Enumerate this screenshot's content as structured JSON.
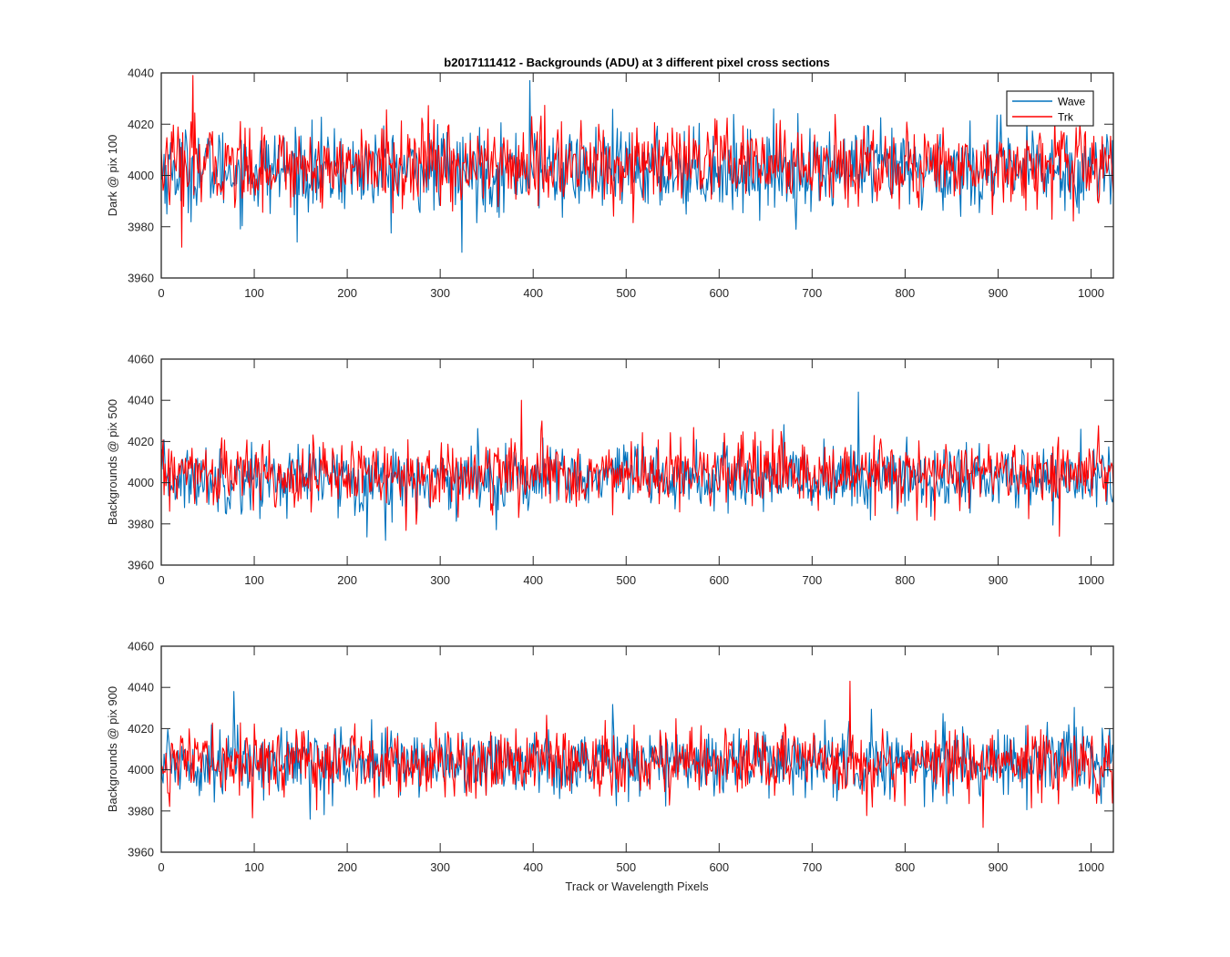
{
  "figure": {
    "title": "b2017111412 - Backgrounds (ADU) at 3 different pixel cross sections",
    "shared_xlabel": "Track or Wavelength Pixels"
  },
  "colors": {
    "wave": "#0072BD",
    "trk": "#FF0000",
    "axis": "#262626"
  },
  "chart_data": [
    {
      "type": "line",
      "title": "b2017111412 - Backgrounds (ADU) at 3 different pixel cross sections",
      "xlabel": "",
      "ylabel": "Dark @ pix 100",
      "xlim": [
        0,
        1024
      ],
      "ylim": [
        3960,
        4040
      ],
      "xticks": [
        0,
        100,
        200,
        300,
        400,
        500,
        600,
        700,
        800,
        900,
        1000
      ],
      "yticks": [
        3960,
        3980,
        4000,
        4020,
        4040
      ],
      "grid": false,
      "legend": "top-right",
      "series": [
        {
          "name": "Wave",
          "color": "#0072BD",
          "mean": 4002,
          "spread": 8,
          "range": [
            3970,
            4037
          ],
          "n_points": 1024
        },
        {
          "name": "Trk",
          "color": "#FF0000",
          "mean": 4004,
          "spread": 8,
          "range": [
            3972,
            4039
          ],
          "n_points": 1024
        }
      ]
    },
    {
      "type": "line",
      "title": "",
      "xlabel": "",
      "ylabel": "Backgrounds @ pix 500",
      "xlim": [
        0,
        1024
      ],
      "ylim": [
        3960,
        4060
      ],
      "xticks": [
        0,
        100,
        200,
        300,
        400,
        500,
        600,
        700,
        800,
        900,
        1000
      ],
      "yticks": [
        3960,
        3980,
        4000,
        4020,
        4040,
        4060
      ],
      "grid": false,
      "legend": "none",
      "series": [
        {
          "name": "Wave",
          "color": "#0072BD",
          "mean": 4002,
          "spread": 8,
          "range": [
            3972,
            4044
          ],
          "n_points": 1024
        },
        {
          "name": "Trk",
          "color": "#FF0000",
          "mean": 4004,
          "spread": 8,
          "range": [
            3974,
            4040
          ],
          "n_points": 1024
        }
      ]
    },
    {
      "type": "line",
      "title": "",
      "xlabel": "Track or Wavelength Pixels",
      "ylabel": "Backgrounds @ pix 900",
      "xlim": [
        0,
        1024
      ],
      "ylim": [
        3960,
        4060
      ],
      "xticks": [
        0,
        100,
        200,
        300,
        400,
        500,
        600,
        700,
        800,
        900,
        1000
      ],
      "yticks": [
        3960,
        3980,
        4000,
        4020,
        4040,
        4060
      ],
      "grid": false,
      "legend": "none",
      "series": [
        {
          "name": "Wave",
          "color": "#0072BD",
          "mean": 4004,
          "spread": 8,
          "range": [
            3976,
            4038
          ],
          "n_points": 1024
        },
        {
          "name": "Trk",
          "color": "#FF0000",
          "mean": 4004,
          "spread": 8,
          "range": [
            3972,
            4043
          ],
          "n_points": 1024
        }
      ]
    }
  ]
}
